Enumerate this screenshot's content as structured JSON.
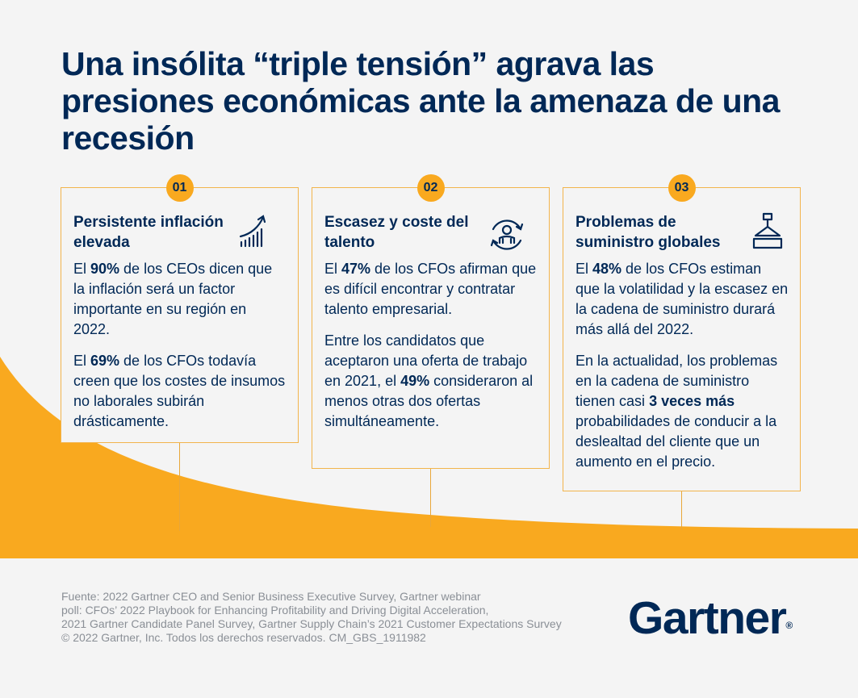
{
  "title": "Una insólita “triple tensión” agrava las presiones económicas ante la amenaza de una recesión",
  "cards": [
    {
      "number": "01",
      "title": "Persistente inflación elevada",
      "icon": "chart-growth-icon",
      "p1": {
        "pre": "El ",
        "bold": "90%",
        "post": " de los CEOs dicen que la inflación será un factor importante en su región en 2022."
      },
      "p2": {
        "pre": "El ",
        "bold": "69%",
        "post": " de los CFOs todavía creen que los costes de insumos no laborales subirán drásticamente."
      }
    },
    {
      "number": "02",
      "title": "Escasez y coste del talento",
      "icon": "talent-cycle-icon",
      "p1": {
        "pre": "El ",
        "bold": "47%",
        "post": " de los CFOs afirman que es difícil encontrar y contratar talento empresarial."
      },
      "p2": {
        "pre": "Entre los candidatos que aceptaron una oferta de trabajo en 2021, el ",
        "bold": "49%",
        "post": " consideraron al menos otras dos ofertas simultáneamente."
      }
    },
    {
      "number": "03",
      "title": "Problemas de suministro globales",
      "icon": "crane-hook-icon",
      "p1": {
        "pre": "El ",
        "bold": "48%",
        "post": " de los CFOs estiman que la volatilidad y la escasez en la cadena de suministro durará más allá del 2022."
      },
      "p2": {
        "pre": "En la actualidad, los problemas en la cadena de suministro tienen casi ",
        "bold": "3 veces más",
        "post": " probabilidades de conducir a la deslealtad del cliente que un aumento en el precio."
      }
    }
  ],
  "footer": {
    "line1": "Fuente: 2022 Gartner CEO and Senior Business Executive Survey, Gartner webinar",
    "line2": "poll: CFOs’ 2022 Playbook for Enhancing Profitability and Driving Digital Acceleration,",
    "line3": "2021 Gartner Candidate Panel Survey, Gartner Supply Chain’s 2021 Customer Expectations Survey",
    "line4": "© 2022 Gartner, Inc. Todos los derechos reservados. CM_GBS_1911982"
  },
  "logo": {
    "text": "Gartner",
    "mark": "®"
  },
  "colors": {
    "navy": "#002856",
    "accent": "#f9a91f",
    "border": "#f2b44c",
    "background": "#f4f4f4"
  }
}
